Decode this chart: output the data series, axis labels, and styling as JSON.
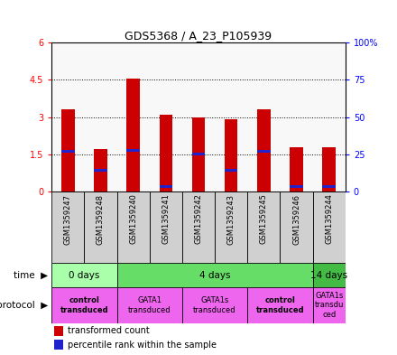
{
  "title": "GDS5368 / A_23_P105939",
  "samples": [
    "GSM1359247",
    "GSM1359248",
    "GSM1359240",
    "GSM1359241",
    "GSM1359242",
    "GSM1359243",
    "GSM1359245",
    "GSM1359246",
    "GSM1359244"
  ],
  "red_values": [
    3.3,
    1.7,
    4.55,
    3.1,
    3.0,
    2.9,
    3.3,
    1.8,
    1.8
  ],
  "blue_values": [
    1.62,
    0.85,
    1.65,
    0.22,
    1.52,
    0.85,
    1.62,
    0.22,
    0.2
  ],
  "ylim_left": [
    0,
    6
  ],
  "ylim_right": [
    0,
    100
  ],
  "yticks_left": [
    0,
    1.5,
    3.0,
    4.5,
    6
  ],
  "yticks_left_labels": [
    "0",
    "1.5",
    "3",
    "4.5",
    "6"
  ],
  "yticks_right": [
    0,
    25,
    50,
    75,
    100
  ],
  "yticks_right_labels": [
    "0",
    "25",
    "50",
    "75",
    "100%"
  ],
  "bar_width": 0.4,
  "bar_color_red": "#cc0000",
  "bar_color_blue": "#2222cc",
  "time_row": [
    {
      "label": "0 days",
      "start": 0,
      "end": 2,
      "color": "#aaffaa"
    },
    {
      "label": "4 days",
      "start": 2,
      "end": 8,
      "color": "#66dd66"
    },
    {
      "label": "14 days",
      "start": 8,
      "end": 9,
      "color": "#44bb44"
    }
  ],
  "protocol_row": [
    {
      "label": "control\ntransduced",
      "start": 0,
      "end": 2,
      "color": "#ee66ee",
      "bold": true
    },
    {
      "label": "GATA1\ntransduced",
      "start": 2,
      "end": 4,
      "color": "#ee66ee",
      "bold": false
    },
    {
      "label": "GATA1s\ntransduced",
      "start": 4,
      "end": 6,
      "color": "#ee66ee",
      "bold": false
    },
    {
      "label": "control\ntransduced",
      "start": 6,
      "end": 8,
      "color": "#ee66ee",
      "bold": true
    },
    {
      "label": "GATA1s\ntransdu\nced",
      "start": 8,
      "end": 9,
      "color": "#ee66ee",
      "bold": false
    }
  ],
  "legend_red_label": "transformed count",
  "legend_blue_label": "percentile rank within the sample",
  "plot_bg": "#f8f8f8",
  "sample_bg": "#d0d0d0"
}
